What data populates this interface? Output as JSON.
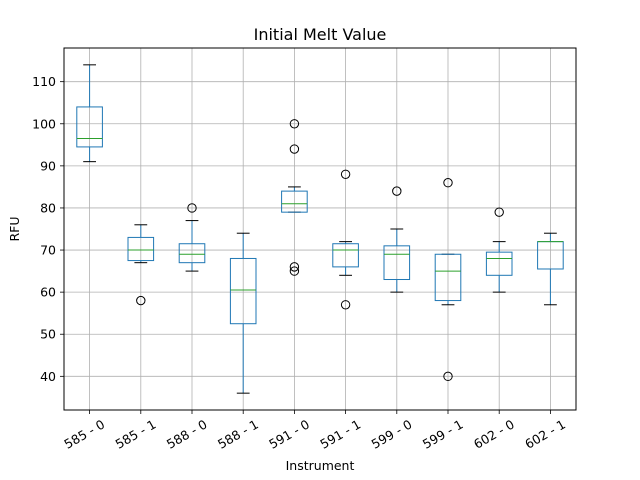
{
  "chart_data": {
    "type": "boxplot",
    "title": "Initial Melt Value",
    "xlabel": "Instrument",
    "ylabel": "RFU",
    "ylim": [
      32,
      118
    ],
    "yticks": [
      40,
      50,
      60,
      70,
      80,
      90,
      100,
      110
    ],
    "grid": true,
    "categories": [
      "585 - 0",
      "585 - 1",
      "588 - 0",
      "588 - 1",
      "591 - 0",
      "591 - 1",
      "599 - 0",
      "599 - 1",
      "602 - 0",
      "602 - 1"
    ],
    "boxes": [
      {
        "whisker_low": 91,
        "q1": 94.5,
        "median": 96.5,
        "q3": 104,
        "whisker_high": 114,
        "outliers": []
      },
      {
        "whisker_low": 67,
        "q1": 67.5,
        "median": 70,
        "q3": 73,
        "whisker_high": 76,
        "outliers": [
          58
        ]
      },
      {
        "whisker_low": 65,
        "q1": 67,
        "median": 69,
        "q3": 71.5,
        "whisker_high": 77,
        "outliers": [
          80
        ]
      },
      {
        "whisker_low": 36,
        "q1": 52.5,
        "median": 60.5,
        "q3": 68,
        "whisker_high": 74,
        "outliers": []
      },
      {
        "whisker_low": 79,
        "q1": 79,
        "median": 81,
        "q3": 84,
        "whisker_high": 85,
        "outliers": [
          100,
          94,
          66,
          65
        ]
      },
      {
        "whisker_low": 64,
        "q1": 66,
        "median": 70,
        "q3": 71.5,
        "whisker_high": 72,
        "outliers": [
          88,
          57
        ]
      },
      {
        "whisker_low": 60,
        "q1": 63,
        "median": 69,
        "q3": 71,
        "whisker_high": 75,
        "outliers": [
          84
        ]
      },
      {
        "whisker_low": 57,
        "q1": 58,
        "median": 65,
        "q3": 69,
        "whisker_high": 69,
        "outliers": [
          86,
          40
        ]
      },
      {
        "whisker_low": 60,
        "q1": 64,
        "median": 68,
        "q3": 69.5,
        "whisker_high": 72,
        "outliers": [
          79
        ]
      },
      {
        "whisker_low": 57,
        "q1": 65.5,
        "median": 72,
        "q3": 72,
        "whisker_high": 74,
        "outliers": []
      }
    ],
    "colors": {
      "box": "#1f77b4",
      "median": "#2ca02c",
      "whisker": "#000000",
      "outlier": "#000000",
      "grid": "#b0b0b0"
    }
  }
}
